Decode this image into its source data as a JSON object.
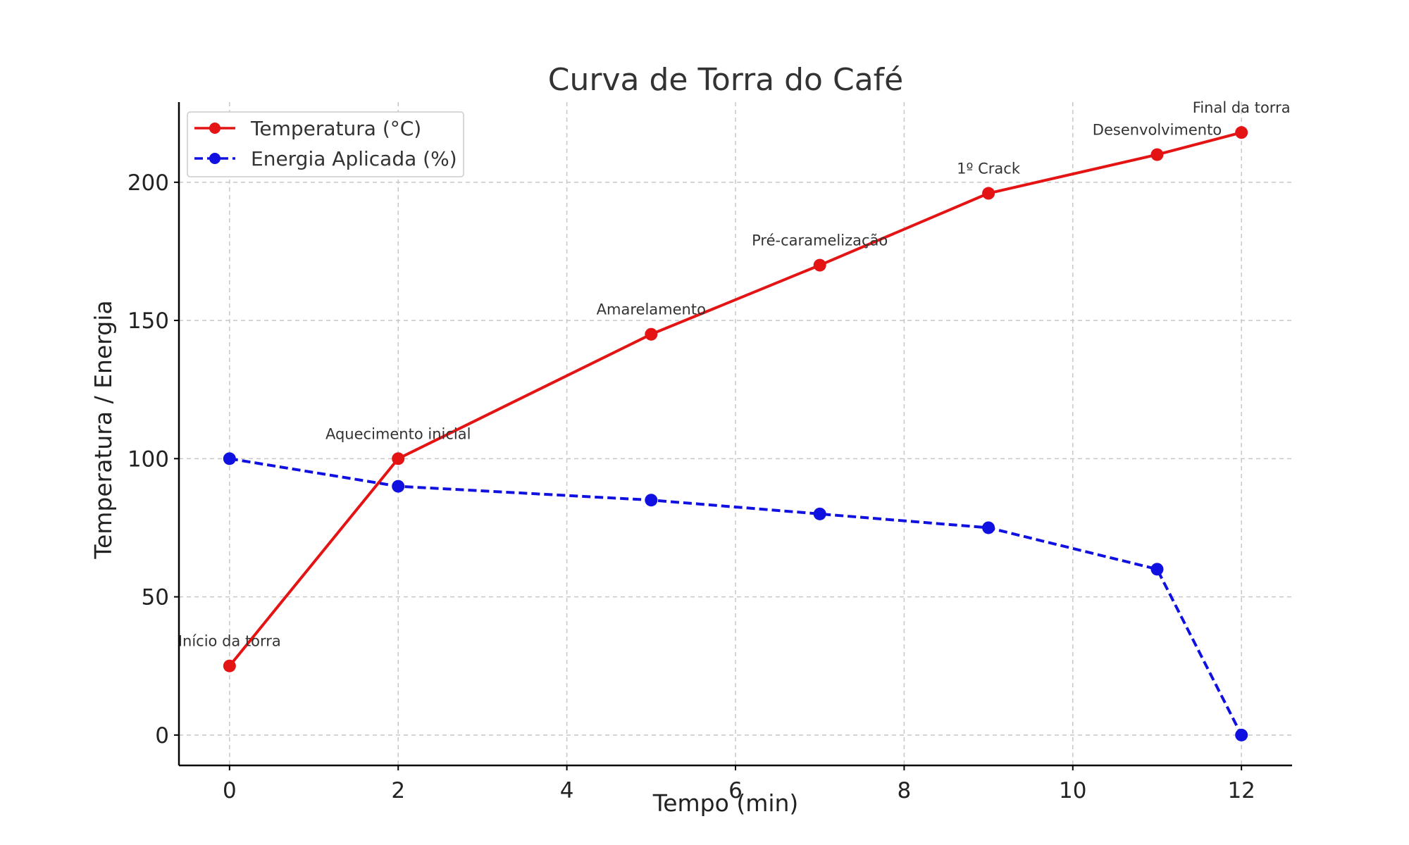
{
  "chart_data": {
    "type": "line",
    "title": "Curva de Torra do Café",
    "xlabel": "Tempo (min)",
    "ylabel": "Temperatura / Energia",
    "xlim": [
      -0.6,
      12.6
    ],
    "ylim": [
      -11,
      229
    ],
    "xticks": [
      0,
      2,
      4,
      6,
      8,
      10,
      12
    ],
    "yticks": [
      0,
      50,
      100,
      150,
      200
    ],
    "grid": true,
    "legend_position": "top-left",
    "series": [
      {
        "name": "Temperatura (°C)",
        "color": "#e41414",
        "style": "solid",
        "marker": "circle",
        "x": [
          0,
          2,
          5,
          7,
          9,
          11,
          12
        ],
        "y": [
          25,
          100,
          145,
          170,
          196,
          210,
          218
        ]
      },
      {
        "name": "Energia Aplicada (%)",
        "color": "#1010e0",
        "style": "dashed",
        "marker": "circle",
        "x": [
          0,
          2,
          5,
          7,
          9,
          11,
          12
        ],
        "y": [
          100,
          90,
          85,
          80,
          75,
          60,
          0
        ]
      }
    ],
    "annotations": [
      {
        "text": "Início da torra",
        "x": 0,
        "y": 25
      },
      {
        "text": "Aquecimento inicial",
        "x": 2,
        "y": 100
      },
      {
        "text": "Amarelamento",
        "x": 5,
        "y": 145
      },
      {
        "text": "Pré-caramelização",
        "x": 7,
        "y": 170
      },
      {
        "text": "1º Crack",
        "x": 9,
        "y": 196
      },
      {
        "text": "Desenvolvimento",
        "x": 11,
        "y": 210
      },
      {
        "text": "Final da torra",
        "x": 12,
        "y": 218
      }
    ]
  }
}
